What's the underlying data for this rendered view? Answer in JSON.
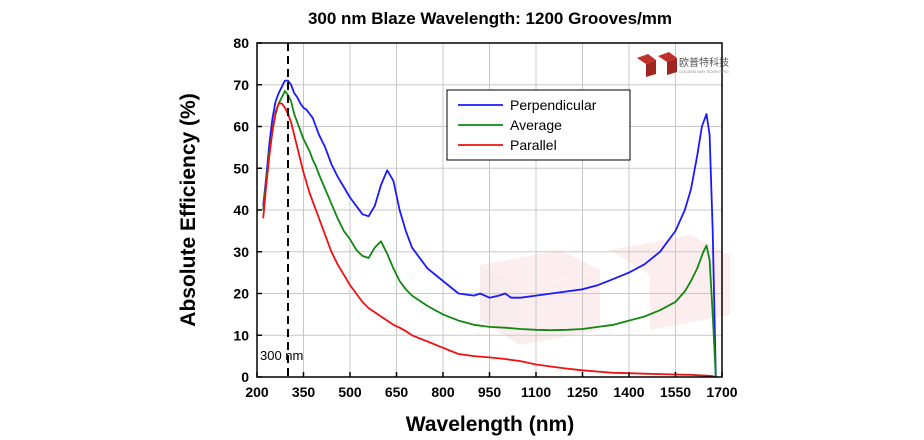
{
  "chart_data": {
    "type": "line",
    "title": "300 nm Blaze Wavelength: 1200 Grooves/mm",
    "xlabel": "Wavelength (nm)",
    "ylabel": "Absolute Efficiency (%)",
    "xlim": [
      200,
      1700
    ],
    "ylim": [
      0,
      80
    ],
    "xticks": [
      200,
      350,
      500,
      650,
      800,
      950,
      1100,
      1250,
      1400,
      1550,
      1700
    ],
    "yticks": [
      0,
      10,
      20,
      30,
      40,
      50,
      60,
      70,
      80
    ],
    "grid": true,
    "legend_position": "upper-middle",
    "annotations": [
      {
        "text": "300 nm",
        "x": 300,
        "style": "dashed vertical line"
      }
    ],
    "series": [
      {
        "name": "Perpendicular",
        "color": "#1a1aff",
        "x": [
          220,
          230,
          240,
          250,
          260,
          270,
          280,
          290,
          300,
          310,
          320,
          330,
          340,
          350,
          360,
          370,
          380,
          390,
          400,
          420,
          440,
          460,
          480,
          500,
          520,
          540,
          560,
          580,
          600,
          620,
          640,
          660,
          680,
          700,
          750,
          800,
          850,
          900,
          920,
          950,
          980,
          1000,
          1020,
          1050,
          1100,
          1150,
          1200,
          1250,
          1300,
          1350,
          1400,
          1450,
          1500,
          1550,
          1580,
          1600,
          1620,
          1635,
          1650,
          1660,
          1670,
          1680
        ],
        "y": [
          41,
          48,
          56,
          62,
          66,
          68,
          69.5,
          71,
          71,
          70,
          68,
          67,
          65.5,
          64.5,
          64,
          63,
          62,
          60,
          58,
          55,
          51,
          48,
          45.5,
          43,
          41,
          39,
          38.5,
          41,
          46,
          49.5,
          47,
          40,
          35,
          31,
          26,
          23,
          20,
          19.5,
          20,
          19,
          19.5,
          20,
          19,
          19,
          19.5,
          20,
          20.5,
          21,
          22,
          23.5,
          25,
          27,
          30,
          35,
          40,
          45,
          53,
          60,
          63,
          58,
          35,
          0
        ]
      },
      {
        "name": "Average",
        "color": "#118811",
        "x": [
          220,
          230,
          240,
          250,
          260,
          270,
          280,
          290,
          300,
          310,
          320,
          330,
          340,
          350,
          360,
          370,
          380,
          390,
          400,
          420,
          440,
          460,
          480,
          500,
          520,
          540,
          560,
          580,
          600,
          620,
          640,
          660,
          680,
          700,
          750,
          800,
          850,
          900,
          950,
          1000,
          1050,
          1100,
          1150,
          1200,
          1250,
          1300,
          1350,
          1400,
          1450,
          1500,
          1550,
          1580,
          1600,
          1620,
          1640,
          1650,
          1660,
          1670,
          1680
        ],
        "y": [
          40,
          47,
          54,
          59,
          63,
          65.5,
          67,
          68.5,
          67.5,
          66,
          63,
          61,
          59,
          57,
          55.5,
          54,
          52,
          50.5,
          48.5,
          45,
          41.5,
          38,
          35,
          33,
          30.5,
          29,
          28.5,
          31,
          32.5,
          29.5,
          26,
          23,
          21,
          19.5,
          17,
          15,
          13.5,
          12.5,
          12,
          11.8,
          11.5,
          11.3,
          11.2,
          11.3,
          11.5,
          12,
          12.5,
          13.5,
          14.5,
          16,
          18,
          20.5,
          23,
          26,
          30,
          31.5,
          28,
          15,
          0
        ]
      },
      {
        "name": "Parallel",
        "color": "#ee1111",
        "x": [
          220,
          230,
          240,
          250,
          260,
          270,
          280,
          290,
          300,
          310,
          320,
          330,
          340,
          350,
          360,
          370,
          380,
          390,
          400,
          420,
          440,
          460,
          480,
          500,
          520,
          540,
          560,
          580,
          600,
          620,
          640,
          660,
          680,
          700,
          750,
          800,
          850,
          900,
          950,
          1000,
          1050,
          1100,
          1150,
          1200,
          1250,
          1300,
          1350,
          1400,
          1450,
          1500,
          1550,
          1600,
          1650,
          1670,
          1680
        ],
        "y": [
          38,
          46,
          53,
          59,
          63.5,
          65.5,
          65.5,
          64.5,
          63,
          61,
          58,
          55,
          52,
          49,
          46.5,
          44,
          42,
          40,
          38,
          34,
          30,
          27,
          24.5,
          22,
          20,
          18,
          16.5,
          15.5,
          14.5,
          13.5,
          12.5,
          11.8,
          11,
          10,
          8.5,
          7,
          5.5,
          5,
          4.7,
          4.3,
          3.8,
          3,
          2.5,
          2,
          1.6,
          1.3,
          1,
          0.9,
          0.8,
          0.7,
          0.6,
          0.5,
          0.3,
          0.2,
          0
        ]
      }
    ],
    "logo": {
      "text": "欧普特科技",
      "subtext": "GOLDEN WAY SCIENTIFIC"
    }
  }
}
